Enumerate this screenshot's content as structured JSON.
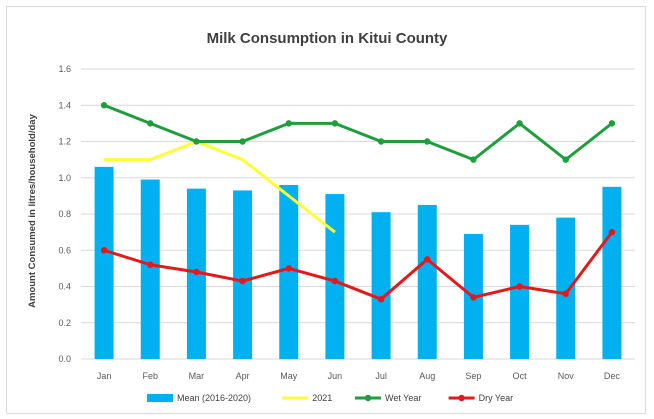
{
  "chart_data": {
    "type": "bar",
    "title": "Milk Consumption in Kitui County",
    "ylabel": "Amount Consumed in litres/household/day",
    "xlabel": "",
    "ylim": [
      0,
      1.6
    ],
    "yticks": [
      "0.0",
      "0.2",
      "0.4",
      "0.6",
      "0.8",
      "1.0",
      "1.2",
      "1.4",
      "1.6"
    ],
    "categories": [
      "Jan",
      "Feb",
      "Mar",
      "Apr",
      "May",
      "Jun",
      "Jul",
      "Aug",
      "Sep",
      "Oct",
      "Nov",
      "Dec"
    ],
    "grid": true,
    "legend": "bottom",
    "series": [
      {
        "name": "Mean (2016-2020)",
        "kind": "bar",
        "color": "#00b0f0",
        "values": [
          1.06,
          0.99,
          0.94,
          0.93,
          0.96,
          0.91,
          0.81,
          0.85,
          0.69,
          0.74,
          0.78,
          0.95
        ]
      },
      {
        "name": "2021",
        "kind": "line",
        "color": "#ffff33",
        "marker": "none",
        "values": [
          1.1,
          1.1,
          1.2,
          1.1,
          0.9,
          0.7,
          null,
          null,
          null,
          null,
          null,
          null
        ]
      },
      {
        "name": "Wet Year",
        "kind": "line",
        "color": "#1e9e3c",
        "marker": "circle",
        "values": [
          1.4,
          1.3,
          1.2,
          1.2,
          1.3,
          1.3,
          1.2,
          1.2,
          1.1,
          1.3,
          1.1,
          1.3
        ]
      },
      {
        "name": "Dry Year",
        "kind": "line",
        "color": "#e31a1c",
        "marker": "circle",
        "values": [
          0.6,
          0.52,
          0.48,
          0.43,
          0.5,
          0.43,
          0.33,
          0.55,
          0.34,
          0.4,
          0.36,
          0.7
        ]
      }
    ]
  }
}
